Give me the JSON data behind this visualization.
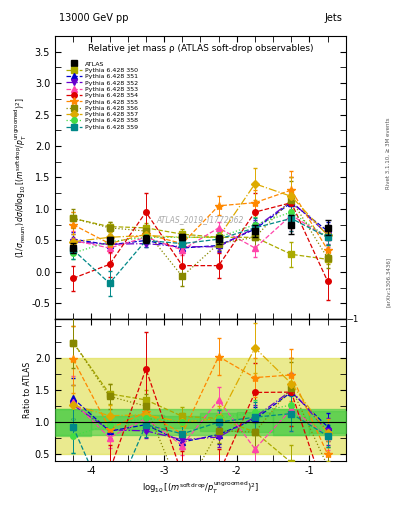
{
  "title_top": "13000 GeV pp",
  "title_right": "Jets",
  "plot_title": "Relative jet mass ρ (ATLAS soft-drop observables)",
  "atlas_label": "ATLAS_2019_I1772062",
  "rivet_label": "Rivet 3.1.10, ≥ 3M events",
  "arxiv_label": "[arXiv:1306.3436]",
  "ylabel_main": "(1/σ_resum) dσ/d log₁₀[(mˢᵒᶠᵗ ᵈʳᵒᵖ/p_Tᵘᵏʳᵒᵒᵐᵉᵈ)^2]",
  "ylabel_ratio": "Ratio to ATLAS",
  "xlabel": "log₁₀[(mˢᵒᶠᵗ ᵈʳᵒᵖ/p_Tᵘᵏʳᵒᵒᵐᵉᵈ)^2]",
  "xlim": [
    -4.5,
    -0.5
  ],
  "ylim_main": [
    -0.75,
    3.75
  ],
  "ylim_ratio": [
    0.4,
    2.6
  ],
  "x_ticks": [
    -4,
    -3,
    -2,
    -1
  ],
  "x_tick_labels": [
    "-4",
    "-3",
    "-2",
    "-1"
  ],
  "main_yticks": [
    -0.5,
    0.0,
    0.5,
    1.0,
    1.5,
    2.0,
    2.5,
    3.0,
    3.5
  ],
  "ratio_yticks": [
    0.5,
    1.0,
    1.5,
    2.0
  ],
  "x_values": [
    -4.25,
    -3.75,
    -3.25,
    -2.75,
    -2.25,
    -1.75,
    -1.25,
    -0.75
  ],
  "atlas_y": [
    0.38,
    0.5,
    0.52,
    0.55,
    0.52,
    0.65,
    0.75,
    0.7
  ],
  "atlas_yerr": [
    0.08,
    0.05,
    0.06,
    0.05,
    0.07,
    0.1,
    0.15,
    0.12
  ],
  "atlas_color": "#000000",
  "series": [
    {
      "label": "Pythia 6.428 350",
      "color": "#aaaa00",
      "marker": "s",
      "linestyle": "--",
      "y": [
        0.85,
        0.72,
        0.7,
        0.6,
        0.55,
        0.55,
        0.28,
        0.2
      ],
      "yerr": [
        0.1,
        0.08,
        0.08,
        0.08,
        0.08,
        0.15,
        0.2,
        0.08
      ]
    },
    {
      "label": "Pythia 6.428 351",
      "color": "#0000cc",
      "marker": "^",
      "linestyle": "--",
      "y": [
        0.52,
        0.43,
        0.5,
        0.38,
        0.42,
        0.68,
        1.1,
        0.65
      ],
      "yerr": [
        0.12,
        0.06,
        0.06,
        0.06,
        0.08,
        0.12,
        0.2,
        0.15
      ]
    },
    {
      "label": "Pythia 6.428 352",
      "color": "#6600cc",
      "marker": "v",
      "linestyle": "-.",
      "y": [
        0.48,
        0.44,
        0.45,
        0.4,
        0.4,
        0.7,
        1.12,
        0.6
      ],
      "yerr": [
        0.12,
        0.06,
        0.06,
        0.06,
        0.08,
        0.12,
        0.2,
        0.15
      ]
    },
    {
      "label": "Pythia 6.428 353",
      "color": "#ff44aa",
      "marker": "^",
      "linestyle": "--",
      "y": [
        0.5,
        0.38,
        0.55,
        0.35,
        0.7,
        0.38,
        0.9,
        0.55
      ],
      "yerr": [
        0.15,
        0.08,
        0.08,
        0.08,
        0.1,
        0.15,
        0.25,
        0.15
      ]
    },
    {
      "label": "Pythia 6.428 354",
      "color": "#dd0000",
      "marker": "o",
      "linestyle": "--",
      "y": [
        -0.1,
        0.12,
        0.95,
        0.1,
        0.1,
        0.95,
        1.1,
        -0.15
      ],
      "yerr": [
        0.2,
        0.2,
        0.3,
        0.2,
        0.2,
        0.3,
        0.4,
        0.3
      ]
    },
    {
      "label": "Pythia 6.428 355",
      "color": "#ff8800",
      "marker": "*",
      "linestyle": "--",
      "y": [
        0.75,
        0.45,
        0.6,
        0.45,
        1.05,
        1.1,
        1.3,
        0.35
      ],
      "yerr": [
        0.2,
        0.1,
        0.1,
        0.1,
        0.15,
        0.2,
        0.3,
        0.15
      ]
    },
    {
      "label": "Pythia 6.428 356",
      "color": "#888800",
      "marker": "s",
      "linestyle": ":",
      "y": [
        0.85,
        0.7,
        0.65,
        -0.07,
        0.45,
        0.55,
        1.15,
        0.22
      ],
      "yerr": [
        0.15,
        0.1,
        0.1,
        0.15,
        0.1,
        0.2,
        0.3,
        0.15
      ]
    },
    {
      "label": "Pythia 6.428 357",
      "color": "#ddaa00",
      "marker": "D",
      "linestyle": "-.",
      "y": [
        0.48,
        0.55,
        0.58,
        0.55,
        0.55,
        1.4,
        1.2,
        0.58
      ],
      "yerr": [
        0.12,
        0.08,
        0.08,
        0.08,
        0.1,
        0.25,
        0.3,
        0.15
      ]
    },
    {
      "label": "Pythia 6.428 358",
      "color": "#44dd44",
      "marker": "o",
      "linestyle": ":",
      "y": [
        0.3,
        0.48,
        0.55,
        0.55,
        0.55,
        0.75,
        0.95,
        0.55
      ],
      "yerr": [
        0.1,
        0.08,
        0.08,
        0.08,
        0.08,
        0.12,
        0.2,
        0.12
      ]
    },
    {
      "label": "Pythia 6.428 359",
      "color": "#008888",
      "marker": "s",
      "linestyle": "--",
      "y": [
        0.35,
        -0.18,
        0.5,
        0.45,
        0.52,
        0.7,
        0.85,
        0.55
      ],
      "yerr": [
        0.15,
        0.2,
        0.1,
        0.1,
        0.1,
        0.15,
        0.2,
        0.12
      ]
    }
  ],
  "ratio_band_green": [
    0.8,
    1.2
  ],
  "ratio_band_yellow": [
    0.5,
    2.0
  ],
  "bg_color_main": "#ffffff",
  "bg_color_ratio": "#ffffff"
}
